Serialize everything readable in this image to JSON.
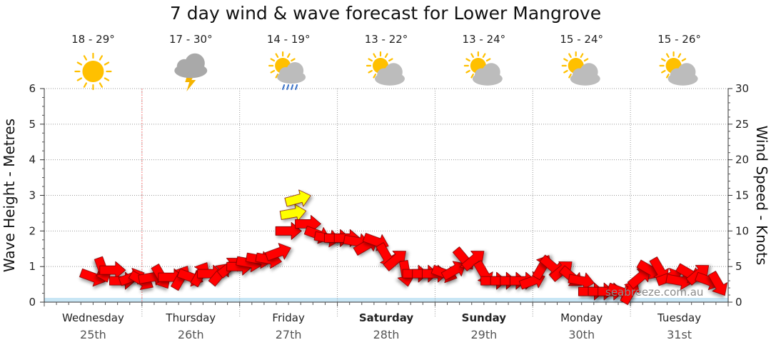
{
  "title": "7 day wind & wave forecast for Lower Mangrove",
  "watermark": "seabreeze.com.au",
  "colors": {
    "wind_arrow": "#ff0000",
    "wind_arrow_strong": "#ffff00",
    "wave_fill": "#c8e6f5",
    "grid": "#999999",
    "now_line": "#ff8888",
    "sun": "#ffc000",
    "cloud": "#bcbcbc",
    "storm_cloud": "#a9a9a9",
    "lightning": "#f5b400",
    "rain": "#3a72c8"
  },
  "days": [
    {
      "name": "Wednesday",
      "date": "25th",
      "temp": "18 - 29°",
      "icon": "sunny-icon",
      "bold": false
    },
    {
      "name": "Thursday",
      "date": "26th",
      "temp": "17 - 30°",
      "icon": "thunderstorm-icon",
      "bold": false
    },
    {
      "name": "Friday",
      "date": "27th",
      "temp": "14 - 19°",
      "icon": "sun-rain-icon",
      "bold": false
    },
    {
      "name": "Saturday",
      "date": "28th",
      "temp": "13 - 22°",
      "icon": "partly-cloudy-icon",
      "bold": true
    },
    {
      "name": "Sunday",
      "date": "29th",
      "temp": "13 - 24°",
      "icon": "partly-cloudy-icon",
      "bold": true
    },
    {
      "name": "Monday",
      "date": "30th",
      "temp": "15 - 24°",
      "icon": "partly-cloudy-icon",
      "bold": false
    },
    {
      "name": "Tuesday",
      "date": "31st",
      "temp": "15 - 26°",
      "icon": "partly-cloudy-icon",
      "bold": false
    }
  ],
  "chart_data": {
    "type": "line",
    "x_unit": "day index (0 = Wednesday 25th 00:00)",
    "y_left": {
      "label": "Wave Height - Metres",
      "range": [
        0,
        6
      ],
      "ticks": [
        0,
        1,
        2,
        3,
        4,
        5,
        6
      ]
    },
    "y_right": {
      "label": "Wind Speed - Knots",
      "range": [
        0,
        30
      ],
      "ticks": [
        0,
        5,
        10,
        15,
        20,
        25,
        30
      ]
    },
    "now_x": 1.0,
    "grid": true,
    "wind_series": {
      "name": "Wind speed (knots) and direction (degrees toward)",
      "x": [
        0.5,
        0.6,
        0.7,
        0.8,
        0.9,
        1.0,
        1.1,
        1.2,
        1.3,
        1.4,
        1.5,
        1.6,
        1.7,
        1.8,
        1.9,
        2.0,
        2.1,
        2.2,
        2.3,
        2.4,
        2.5,
        2.55,
        2.6,
        2.7,
        2.8,
        2.9,
        3.0,
        3.1,
        3.2,
        3.3,
        3.4,
        3.5,
        3.6,
        3.7,
        3.8,
        3.9,
        4.0,
        4.1,
        4.2,
        4.3,
        4.4,
        4.5,
        4.6,
        4.7,
        4.8,
        4.9,
        5.0,
        5.1,
        5.2,
        5.3,
        5.4,
        5.5,
        5.6,
        5.7,
        5.8,
        5.9,
        6.0,
        6.1,
        6.2,
        6.3,
        6.4,
        6.5,
        6.6,
        6.7,
        6.8,
        6.9
      ],
      "speed": [
        3.5,
        4.5,
        4.5,
        3.0,
        3.5,
        3.0,
        3.5,
        3.5,
        3.5,
        3.5,
        3.5,
        4.0,
        4.0,
        4.0,
        5.0,
        5.0,
        5.5,
        6.0,
        6.0,
        7.0,
        10.0,
        12.5,
        14.5,
        11.0,
        9.5,
        9.0,
        9.0,
        9.0,
        8.5,
        8.0,
        8.5,
        6.5,
        6.0,
        4.0,
        4.0,
        4.0,
        4.0,
        4.0,
        4.5,
        6.0,
        6.0,
        4.0,
        3.0,
        3.0,
        3.0,
        3.0,
        3.0,
        5.0,
        5.0,
        4.5,
        3.5,
        3.0,
        1.5,
        1.5,
        1.5,
        1.5,
        1.5,
        3.5,
        4.5,
        4.5,
        3.5,
        3.0,
        4.0,
        4.0,
        3.0,
        2.5
      ],
      "direction": [
        20,
        70,
        0,
        0,
        -20,
        30,
        -10,
        60,
        0,
        -60,
        20,
        -60,
        0,
        -50,
        -40,
        0,
        10,
        10,
        10,
        -20,
        0,
        -10,
        -15,
        0,
        20,
        10,
        0,
        0,
        10,
        -30,
        20,
        60,
        -40,
        80,
        0,
        0,
        0,
        20,
        -30,
        50,
        -40,
        60,
        0,
        0,
        0,
        0,
        -20,
        -60,
        40,
        -40,
        40,
        10,
        0,
        0,
        0,
        20,
        -60,
        -40,
        30,
        60,
        -20,
        10,
        30,
        -40,
        20,
        60
      ]
    }
  }
}
